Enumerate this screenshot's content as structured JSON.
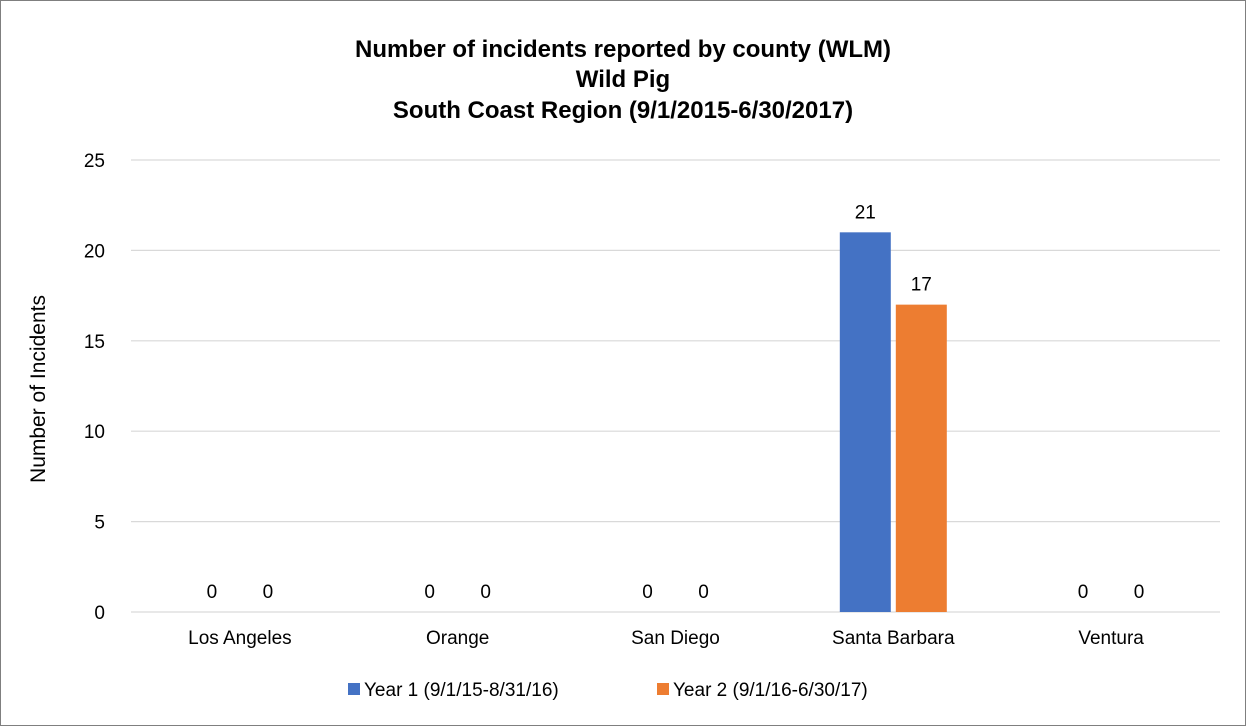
{
  "chart_data": {
    "type": "bar",
    "title_lines": [
      "Number of incidents reported by county (WLM)",
      "Wild Pig",
      "South Coast Region (9/1/2015-6/30/2017)"
    ],
    "xlabel": "",
    "ylabel": "Number of Incidents",
    "categories": [
      "Los Angeles",
      "Orange",
      "San Diego",
      "Santa Barbara",
      "Ventura"
    ],
    "series": [
      {
        "name": "Year 1 (9/1/15-8/31/16)",
        "values": [
          0,
          0,
          0,
          21,
          0
        ],
        "color": "#4472c4"
      },
      {
        "name": "Year 2 (9/1/16-6/30/17)",
        "values": [
          0,
          0,
          0,
          17,
          0
        ],
        "color": "#ed7d31"
      }
    ],
    "ylim": [
      0,
      25
    ],
    "yticks": [
      0,
      5,
      10,
      15,
      20,
      25
    ],
    "grid": true,
    "data_labels": true,
    "legend_position": "bottom",
    "gridline_color": "#d9d9d9"
  }
}
